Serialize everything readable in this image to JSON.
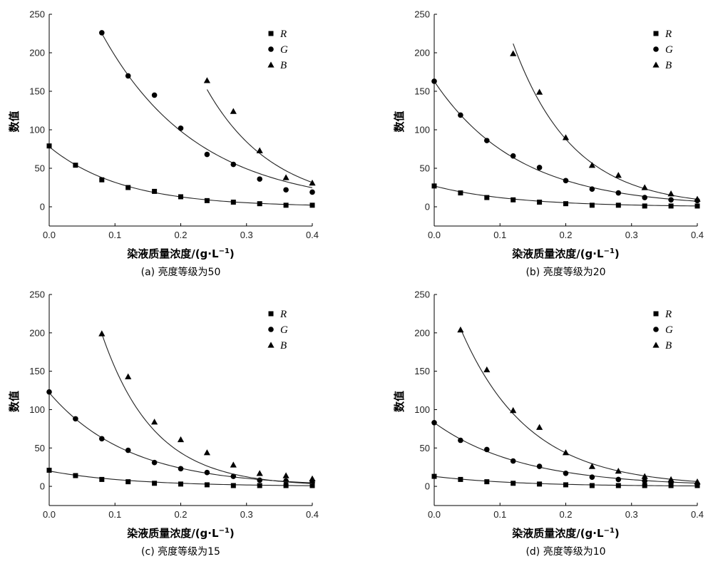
{
  "chart_data": [
    {
      "type": "scatter",
      "caption": "(a) 亮度等级为50",
      "xlabel_main": "染液质量浓度/(g·L",
      "xlabel_exp": "−1",
      "xlabel_end": ")",
      "ylabel": "数值",
      "xlim": [
        0,
        0.4
      ],
      "ylim": [
        -25,
        250
      ],
      "xticks": [
        "0.0",
        "0.1",
        "0.2",
        "0.3",
        "0.4"
      ],
      "yticks": [
        "0",
        "50",
        "100",
        "150",
        "200",
        "250"
      ],
      "legend_position": "top-right",
      "series": [
        {
          "name": "R",
          "marker": "square",
          "x": [
            0.0,
            0.04,
            0.08,
            0.12,
            0.16,
            0.2,
            0.24,
            0.28,
            0.32,
            0.36,
            0.4
          ],
          "y": [
            79,
            54,
            35,
            25,
            20,
            13,
            8,
            6,
            4,
            2,
            2
          ],
          "fit": {
            "a": 78,
            "k": 9.0
          }
        },
        {
          "name": "G",
          "marker": "circle",
          "x": [
            0.08,
            0.12,
            0.16,
            0.2,
            0.24,
            0.28,
            0.32,
            0.36,
            0.4
          ],
          "y": [
            226,
            170,
            145,
            102,
            68,
            55,
            36,
            22,
            19
          ],
          "fit": {
            "a": 391,
            "k": 6.9
          }
        },
        {
          "name": "B",
          "marker": "triangle",
          "x": [
            0.24,
            0.28,
            0.32,
            0.36,
            0.4
          ],
          "y": [
            164,
            124,
            73,
            38,
            31
          ],
          "fit": {
            "a": 1616,
            "k": 9.84
          }
        }
      ]
    },
    {
      "type": "scatter",
      "caption": "(b) 亮度等级为20",
      "xlabel_main": "染液质量浓度/(g·L",
      "xlabel_exp": "−1",
      "xlabel_end": ")",
      "ylabel": "数值",
      "xlim": [
        0,
        0.4
      ],
      "ylim": [
        -25,
        250
      ],
      "xticks": [
        "0.0",
        "0.1",
        "0.2",
        "0.3",
        "0.4"
      ],
      "yticks": [
        "0",
        "50",
        "100",
        "150",
        "200",
        "250"
      ],
      "legend_position": "top-right",
      "series": [
        {
          "name": "R",
          "marker": "square",
          "x": [
            0.0,
            0.04,
            0.08,
            0.12,
            0.16,
            0.2,
            0.24,
            0.28,
            0.32,
            0.36,
            0.4
          ],
          "y": [
            27,
            18,
            12,
            9,
            6,
            4,
            2,
            2,
            1,
            1,
            1
          ],
          "fit": {
            "a": 27,
            "k": 8.2
          }
        },
        {
          "name": "G",
          "marker": "circle",
          "x": [
            0.0,
            0.04,
            0.08,
            0.12,
            0.16,
            0.2,
            0.24,
            0.28,
            0.32,
            0.36,
            0.4
          ],
          "y": [
            163,
            119,
            86,
            66,
            51,
            34,
            23,
            18,
            12,
            9,
            8
          ],
          "fit": {
            "a": 163,
            "k": 7.8
          }
        },
        {
          "name": "B",
          "marker": "triangle",
          "x": [
            0.12,
            0.16,
            0.2,
            0.24,
            0.28,
            0.32,
            0.36,
            0.4
          ],
          "y": [
            199,
            149,
            90,
            54,
            41,
            25,
            17,
            10
          ],
          "fit": {
            "a": 793,
            "k": 11.0
          }
        }
      ]
    },
    {
      "type": "scatter",
      "caption": "(c) 亮度等级为15",
      "xlabel_main": "染液质量浓度/(g·L",
      "xlabel_exp": "−1",
      "xlabel_end": ")",
      "ylabel": "数值",
      "xlim": [
        0,
        0.4
      ],
      "ylim": [
        -25,
        250
      ],
      "xticks": [
        "0.0",
        "0.1",
        "0.2",
        "0.3",
        "0.4"
      ],
      "yticks": [
        "0",
        "50",
        "100",
        "150",
        "200",
        "250"
      ],
      "legend_position": "top-right",
      "series": [
        {
          "name": "R",
          "marker": "square",
          "x": [
            0.0,
            0.04,
            0.08,
            0.12,
            0.16,
            0.2,
            0.24,
            0.28,
            0.32,
            0.36,
            0.4
          ],
          "y": [
            21,
            14,
            9,
            6,
            4,
            3,
            2,
            1,
            1,
            1,
            1
          ],
          "fit": {
            "a": 20,
            "k": 8.0
          }
        },
        {
          "name": "G",
          "marker": "circle",
          "x": [
            0.0,
            0.04,
            0.08,
            0.12,
            0.16,
            0.2,
            0.24,
            0.28,
            0.32,
            0.36,
            0.4
          ],
          "y": [
            123,
            88,
            62,
            47,
            31,
            23,
            18,
            13,
            8,
            7,
            5
          ],
          "fit": {
            "a": 122,
            "k": 8.2
          }
        },
        {
          "name": "B",
          "marker": "triangle",
          "x": [
            0.08,
            0.12,
            0.16,
            0.2,
            0.24,
            0.28,
            0.32,
            0.36,
            0.4
          ],
          "y": [
            199,
            143,
            84,
            61,
            44,
            28,
            17,
            14,
            10
          ],
          "fit": {
            "a": 545,
            "k": 12.6
          }
        }
      ]
    },
    {
      "type": "scatter",
      "caption": "(d) 亮度等级为10",
      "xlabel_main": "染液质量浓度/(g·L",
      "xlabel_exp": "−1",
      "xlabel_end": ")",
      "ylabel": "数值",
      "xlim": [
        0,
        0.4
      ],
      "ylim": [
        -25,
        250
      ],
      "xticks": [
        "0.0",
        "0.1",
        "0.2",
        "0.3",
        "0.4"
      ],
      "yticks": [
        "0",
        "50",
        "100",
        "150",
        "200",
        "250"
      ],
      "legend_position": "top-right",
      "series": [
        {
          "name": "R",
          "marker": "square",
          "x": [
            0.0,
            0.04,
            0.08,
            0.12,
            0.16,
            0.2,
            0.24,
            0.28,
            0.32,
            0.36,
            0.4
          ],
          "y": [
            13,
            9,
            6,
            4,
            3,
            2,
            1,
            1,
            1,
            1,
            1
          ],
          "fit": {
            "a": 13,
            "k": 8.0
          }
        },
        {
          "name": "G",
          "marker": "circle",
          "x": [
            0.0,
            0.04,
            0.08,
            0.12,
            0.16,
            0.2,
            0.24,
            0.28,
            0.32,
            0.36,
            0.4
          ],
          "y": [
            83,
            60,
            48,
            33,
            26,
            17,
            12,
            9,
            7,
            5,
            3
          ],
          "fit": {
            "a": 83,
            "k": 7.5
          }
        },
        {
          "name": "B",
          "marker": "triangle",
          "x": [
            0.04,
            0.08,
            0.12,
            0.16,
            0.2,
            0.24,
            0.28,
            0.32,
            0.36,
            0.4
          ],
          "y": [
            204,
            152,
            99,
            77,
            44,
            26,
            20,
            13,
            9,
            6
          ],
          "fit": {
            "a": 303,
            "k": 9.7
          }
        }
      ]
    }
  ]
}
